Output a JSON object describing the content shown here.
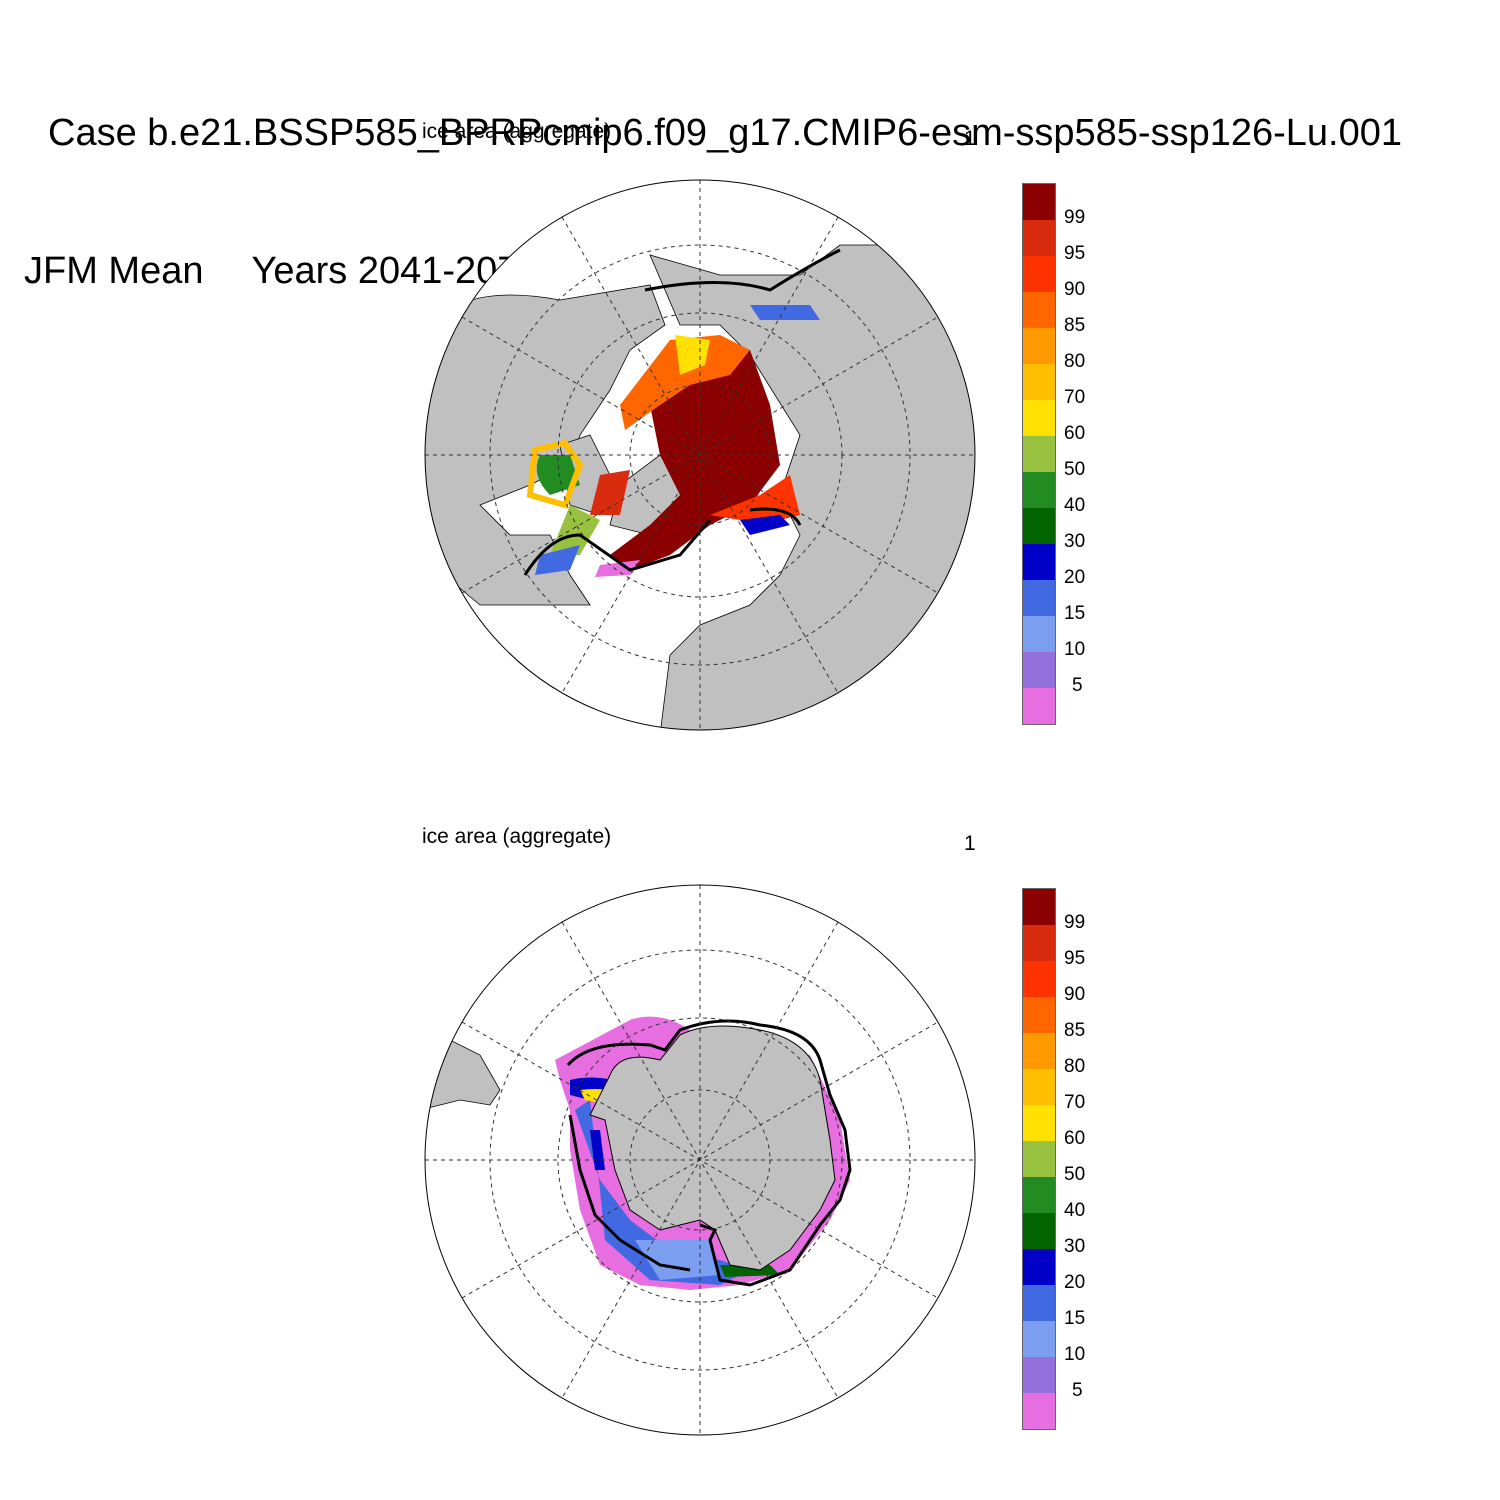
{
  "header": {
    "line1": "Case b.e21.BSSP585_BPRPcmip6.f09_g17.CMIP6-esm-ssp585-ssp126-Lu.001",
    "season": "JFM Mean",
    "years": "Years 2041-2070"
  },
  "panels": [
    {
      "id": "arctic",
      "title": "ice area  (aggregate)",
      "number": "1",
      "hemisphere": "north"
    },
    {
      "id": "antarctic",
      "title": "ice area  (aggregate)",
      "number": "1",
      "hemisphere": "south"
    }
  ],
  "legend": {
    "labels": [
      "99",
      "95",
      "90",
      "85",
      "80",
      "70",
      "60",
      "50",
      "40",
      "30",
      "20",
      "15",
      "10",
      "5"
    ],
    "colors": [
      "#8b0000",
      "#d92b0e",
      "#ff3300",
      "#ff6600",
      "#ff9900",
      "#ffbf00",
      "#ffe000",
      "#99c140",
      "#228b22",
      "#006400",
      "#0000c8",
      "#4169e1",
      "#7b9ef0",
      "#9370db",
      "#e66ee0"
    ]
  },
  "colors": {
    "land": "#c0c0c0",
    "ocean": "#ffffff",
    "grid": "#333333",
    "contour": "#000000"
  }
}
